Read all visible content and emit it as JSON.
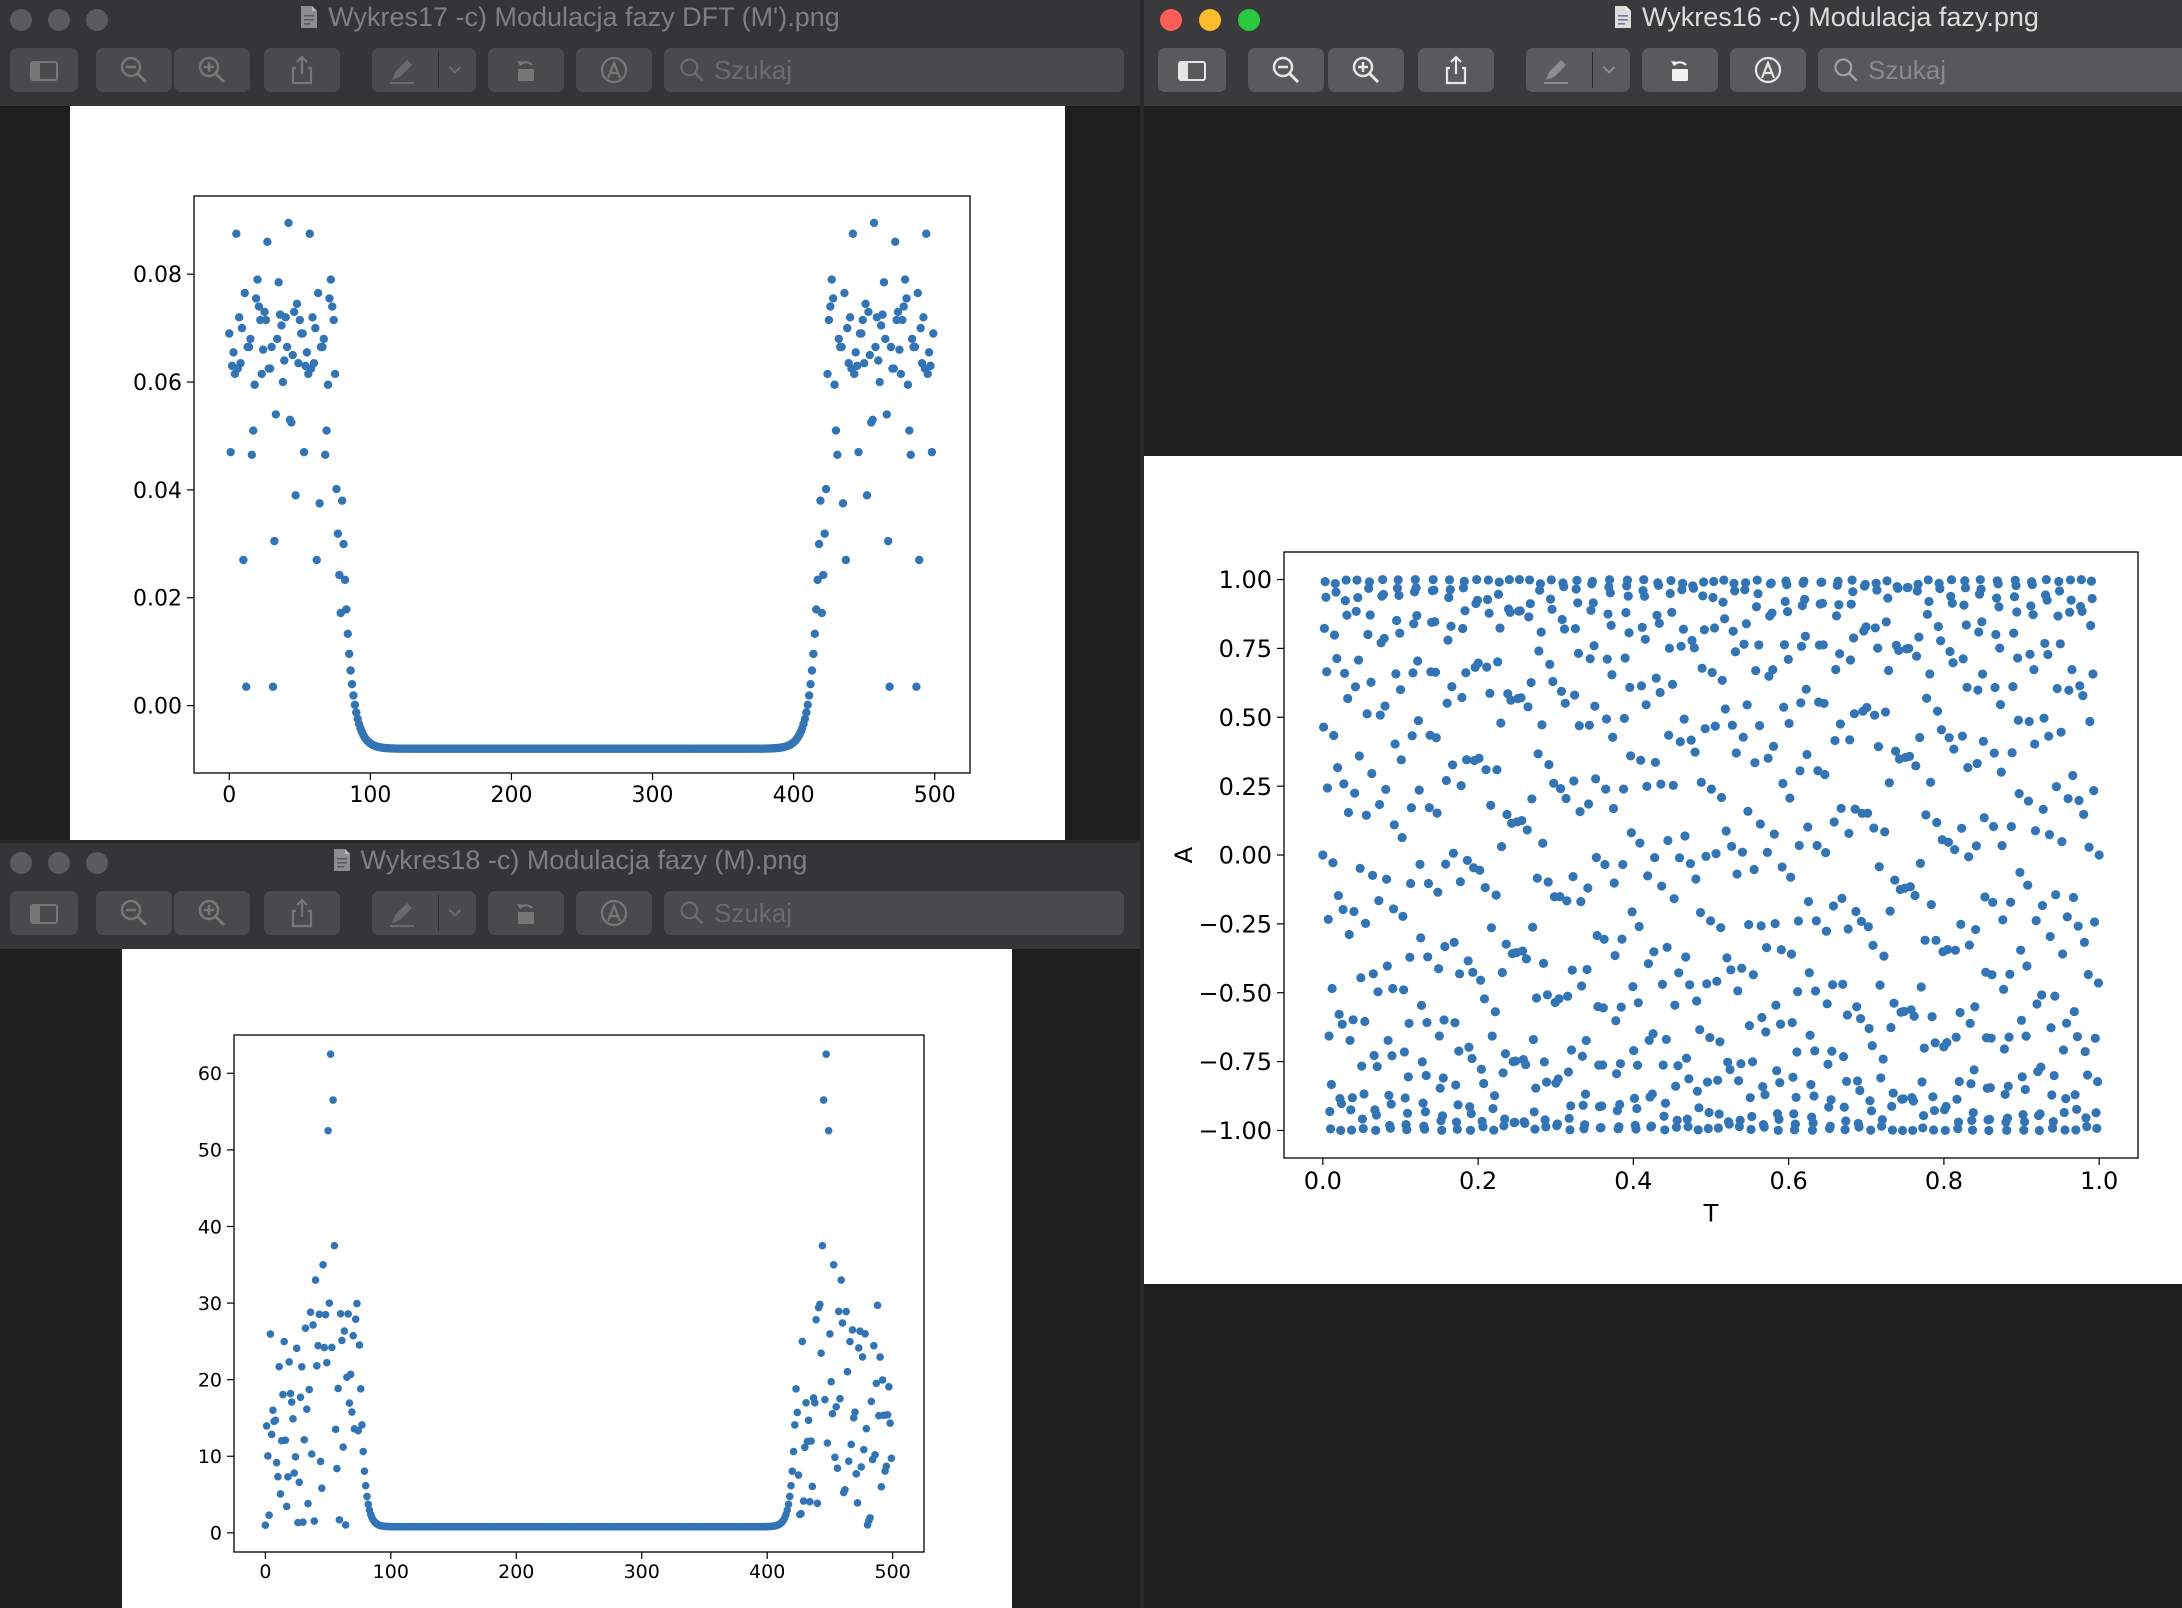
{
  "windows": {
    "w17": {
      "title": "Wykres17 -c) Modulacja fazy DFT (M').png",
      "search_placeholder": "Szukaj"
    },
    "w18": {
      "title": "Wykres18 -c) Modulacja fazy (M).png",
      "search_placeholder": "Szukaj"
    },
    "w16": {
      "title": "Wykres16 -c) Modulacja fazy.png",
      "search_placeholder": "Szukaj"
    }
  },
  "icons": [
    "sidebar-icon",
    "chevron-down-icon",
    "zoom-out-icon",
    "zoom-in-icon",
    "share-icon",
    "markup-pen-icon",
    "rotate-icon",
    "annotate-icon",
    "search-icon",
    "document-icon"
  ],
  "colors": {
    "point": "#3274b4",
    "active_red": "#fd5f57",
    "active_yellow": "#febc2e",
    "active_green": "#28c840"
  },
  "chart_data": [
    {
      "id": "dft",
      "type": "scatter",
      "title": "",
      "xlabel": "",
      "ylabel": "",
      "xlim": [
        -25,
        525
      ],
      "ylim": [
        -0.0125,
        0.0945
      ],
      "xticks": [
        "0",
        "100",
        "200",
        "300",
        "400",
        "500"
      ],
      "yticks": [
        "0.00",
        "0.02",
        "0.04",
        "0.06",
        "0.08"
      ],
      "description": "symmetric DFT magnitude: scattered peaks 0.003-0.09 for x<80 and x>420, smooth U-shaped decay to about -0.008 in the middle",
      "n": 500,
      "peak_values": [
        0.072,
        0.0715,
        0.0705,
        0.069,
        0.068,
        0.0665,
        0.065,
        0.0635,
        0.0615,
        0.06,
        0.047,
        0.0465,
        0.0035,
        0.073,
        0.07,
        0.066,
        0.064,
        0.063,
        0.051,
        0.0305,
        0.039,
        0.027,
        0.073,
        0.072,
        0.0655,
        0.0595,
        0.054,
        0.0745,
        0.0765,
        0.0715,
        0.0665,
        0.0615,
        0.0755,
        0.068,
        0.0635,
        0.0375,
        0.086,
        0.0895,
        0.0875,
        0.079,
        0.0785,
        0.0715,
        0.0665,
        0.0625,
        0.053,
        0.0625,
        0.074,
        0.0725,
        0.069,
        0.0665,
        0.0625,
        0.0525
      ]
    },
    {
      "id": "signal",
      "type": "scatter",
      "title": "",
      "xlabel": "",
      "ylabel": "",
      "xlim": [
        -25,
        525
      ],
      "ylim": [
        -2.5,
        65
      ],
      "xticks": [
        "0",
        "100",
        "200",
        "300",
        "400",
        "500"
      ],
      "yticks": [
        "0",
        "10",
        "20",
        "30",
        "40",
        "50",
        "60"
      ],
      "description": "symmetric magnitude spectrum: peaks up to 62.5 near x=52 and x=448, flat near 0.8 between 100 and 400",
      "n": 500
    },
    {
      "id": "phase",
      "type": "scatter",
      "title": "",
      "xlabel": "T",
      "ylabel": "A",
      "xlim": [
        -0.05,
        1.05
      ],
      "ylim": [
        -1.1,
        1.1
      ],
      "xticks": [
        "0.0",
        "0.2",
        "0.4",
        "0.6",
        "0.8",
        "1.0"
      ],
      "yticks": [
        "1.00",
        "0.75",
        "0.50",
        "0.25",
        "0.00",
        "−0.25",
        "−0.50",
        "−0.75",
        "−1.00"
      ],
      "description": "phase modulated sine sampled at 1000 points on [0,1]",
      "n": 1000
    }
  ]
}
